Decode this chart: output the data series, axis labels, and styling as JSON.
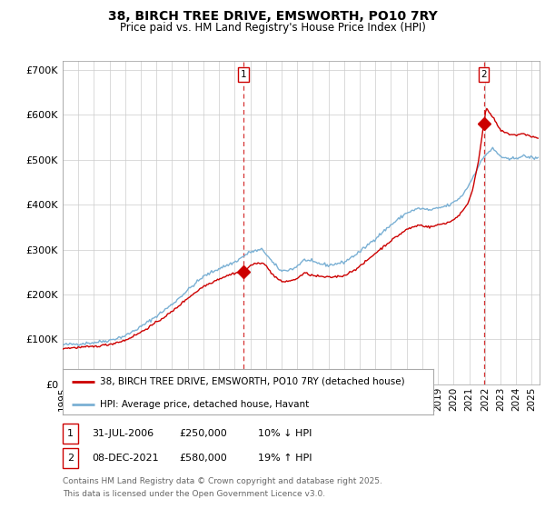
{
  "title": "38, BIRCH TREE DRIVE, EMSWORTH, PO10 7RY",
  "subtitle": "Price paid vs. HM Land Registry's House Price Index (HPI)",
  "ylabel_ticks": [
    "£0",
    "£100K",
    "£200K",
    "£300K",
    "£400K",
    "£500K",
    "£600K",
    "£700K"
  ],
  "ylim": [
    0,
    720000
  ],
  "xlim_start": 1995.0,
  "xlim_end": 2025.5,
  "hpi_color": "#7ab0d4",
  "price_color": "#cc0000",
  "marker1_x": 2006.58,
  "marker1_y": 250000,
  "marker2_x": 2021.93,
  "marker2_y": 580000,
  "legend_line1": "38, BIRCH TREE DRIVE, EMSWORTH, PO10 7RY (detached house)",
  "legend_line2": "HPI: Average price, detached house, Havant",
  "row1_num": "1",
  "row1_date": "31-JUL-2006",
  "row1_price": "£250,000",
  "row1_hpi": "10% ↓ HPI",
  "row2_num": "2",
  "row2_date": "08-DEC-2021",
  "row2_price": "£580,000",
  "row2_hpi": "19% ↑ HPI",
  "footnote_line1": "Contains HM Land Registry data © Crown copyright and database right 2025.",
  "footnote_line2": "This data is licensed under the Open Government Licence v3.0.",
  "background_color": "#ffffff",
  "grid_color": "#cccccc"
}
